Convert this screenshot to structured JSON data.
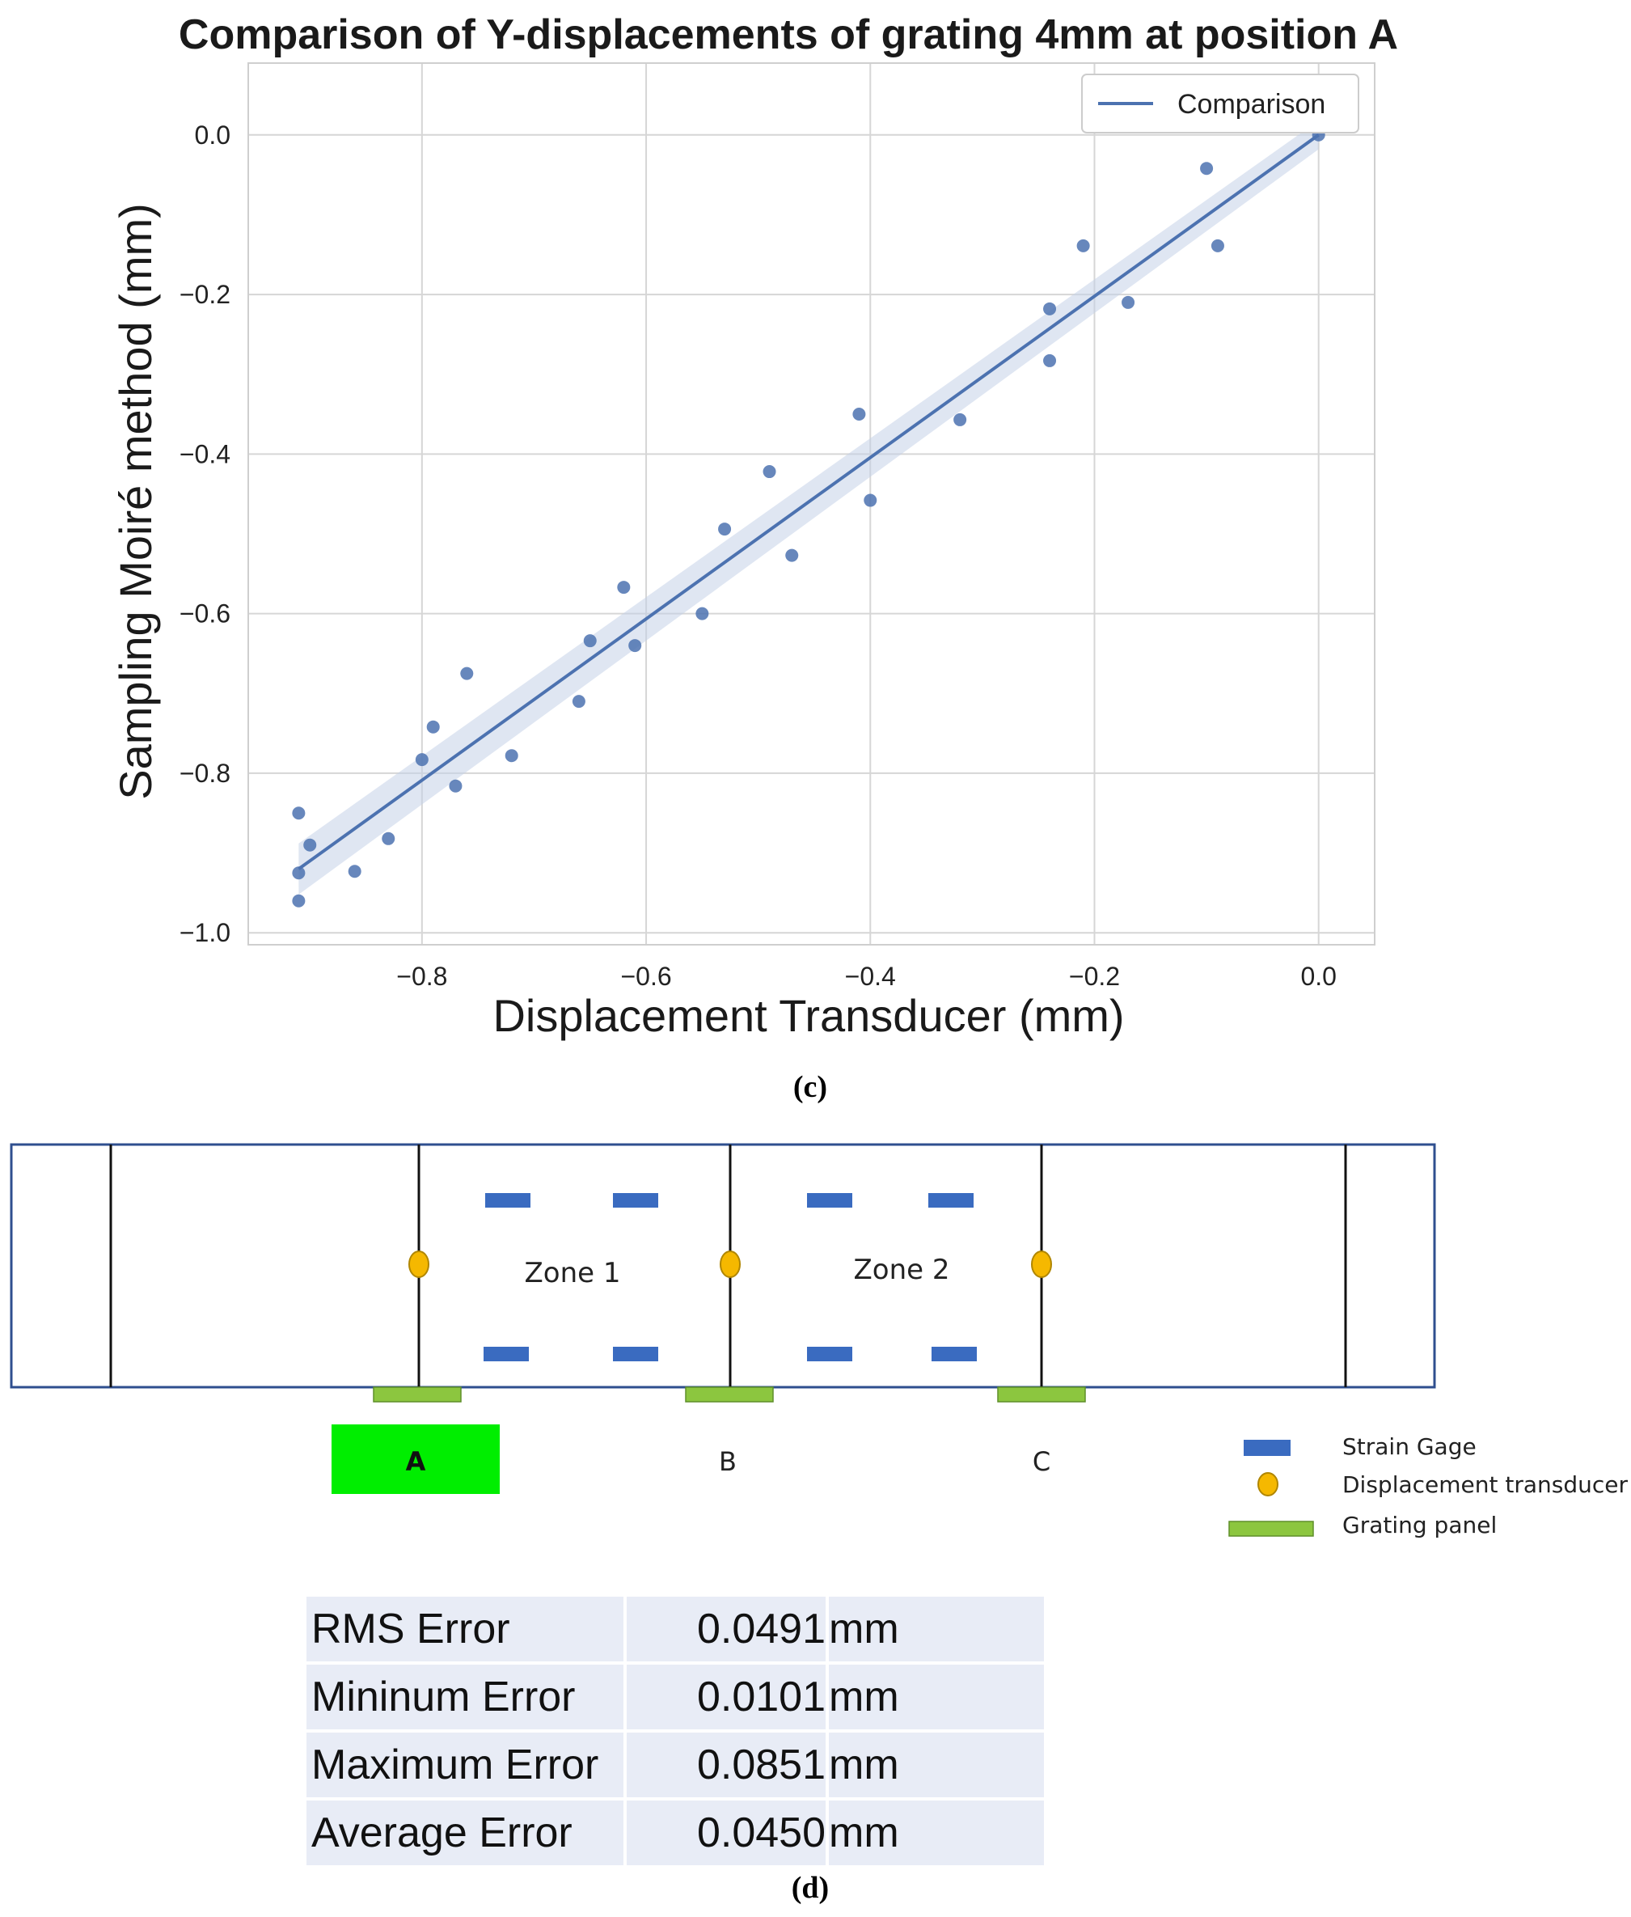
{
  "chart_data": {
    "type": "scatter",
    "title": "Comparison of Y-displacements of grating 4mm at position A",
    "xlabel": "Displacement Transducer (mm)",
    "ylabel": "Sampling Moiré method (mm)",
    "xlim": [
      -0.955,
      0.05
    ],
    "ylim": [
      -1.015,
      0.09
    ],
    "xticks": [
      -0.8,
      -0.6,
      -0.4,
      -0.2,
      0.0
    ],
    "xtick_labels": [
      "−0.8",
      "−0.6",
      "−0.4",
      "−0.2",
      "0.0"
    ],
    "yticks": [
      0.0,
      -0.2,
      -0.4,
      -0.6,
      -0.8,
      -1.0
    ],
    "ytick_labels": [
      "0.0",
      "−0.2",
      "−0.4",
      "−0.6",
      "−0.8",
      "−1.0"
    ],
    "grid": true,
    "legend": "top-right",
    "series": [
      {
        "name": "Comparison",
        "color": "#4c72b0",
        "x": [
          -0.91,
          -0.91,
          -0.91,
          -0.9,
          -0.86,
          -0.83,
          -0.8,
          -0.79,
          -0.77,
          -0.76,
          -0.72,
          -0.66,
          -0.65,
          -0.62,
          -0.61,
          -0.55,
          -0.53,
          -0.49,
          -0.47,
          -0.41,
          -0.4,
          -0.32,
          -0.24,
          -0.24,
          -0.21,
          -0.17,
          -0.1,
          -0.09,
          0.0
        ],
        "y": [
          -0.85,
          -0.925,
          -0.96,
          -0.89,
          -0.923,
          -0.882,
          -0.783,
          -0.742,
          -0.816,
          -0.675,
          -0.778,
          -0.71,
          -0.634,
          -0.567,
          -0.64,
          -0.6,
          -0.494,
          -0.422,
          -0.527,
          -0.35,
          -0.458,
          -0.357,
          -0.218,
          -0.283,
          -0.139,
          -0.21,
          -0.042,
          -0.139,
          0.0
        ]
      }
    ],
    "fit_line": {
      "x": [
        -0.91,
        0.0
      ],
      "y": [
        -0.92,
        0.0
      ]
    }
  },
  "captions": {
    "chart": "(c)",
    "diagram": "(d)"
  },
  "diagram": {
    "zones": [
      "Zone 1",
      "Zone 2"
    ],
    "positions": [
      "A",
      "B",
      "C"
    ],
    "highlight_position": "A",
    "colors": {
      "frame": "#2f4f8f",
      "strain_gage": "#3a6bc0",
      "transducer": "#f5b800",
      "grating_panel": "#8cc63f",
      "highlight": "#00ee00"
    },
    "legend": [
      {
        "symbol": "strain-gage",
        "label": "Strain Gage"
      },
      {
        "symbol": "displacement-transducer",
        "label": "Displacement transducer"
      },
      {
        "symbol": "grating-panel",
        "label": "Grating panel"
      }
    ]
  },
  "error_table": {
    "rows": [
      {
        "name": "RMS Error",
        "value": "0.0491",
        "unit": "mm"
      },
      {
        "name": "Mininum Error",
        "value": "0.0101",
        "unit": "mm"
      },
      {
        "name": "Maximum Error",
        "value": "0.0851",
        "unit": "mm"
      },
      {
        "name": "Average Error",
        "value": "0.0450",
        "unit": "mm"
      }
    ]
  }
}
